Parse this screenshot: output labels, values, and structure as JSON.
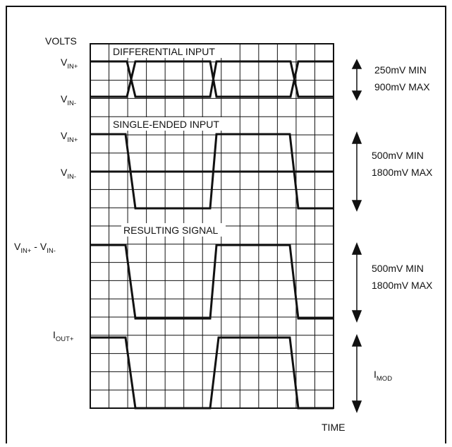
{
  "axis": {
    "y_unit": "VOLTS",
    "x_unit": "TIME"
  },
  "panels": {
    "differential": {
      "title": "DIFFERENTIAL INPUT",
      "top_label": {
        "main": "V",
        "sub": "IN+"
      },
      "bottom_label": {
        "main": "V",
        "sub": "IN-"
      },
      "swing_min": "250mV MIN",
      "swing_max": "900mV MAX"
    },
    "single_ended": {
      "title": "SINGLE-ENDED INPUT",
      "top_label": {
        "main": "V",
        "sub": "IN+"
      },
      "bottom_label": {
        "main": "V",
        "sub": "IN-"
      },
      "swing_min": "500mV MIN",
      "swing_max": "1800mV MAX"
    },
    "resulting": {
      "title": "RESULTING SIGNAL",
      "label": {
        "main1": "V",
        "sub1": "IN+",
        "mid": " - V",
        "sub2": "IN-"
      },
      "swing_min": "500mV MIN",
      "swing_max": "1800mV MAX"
    },
    "output": {
      "label": {
        "main": "I",
        "sub": "OUT+"
      },
      "swing": {
        "main": "I",
        "sub": "MOD"
      }
    }
  },
  "colors": {
    "ink": "#111111",
    "grid": "#111111",
    "background": "#ffffff"
  }
}
